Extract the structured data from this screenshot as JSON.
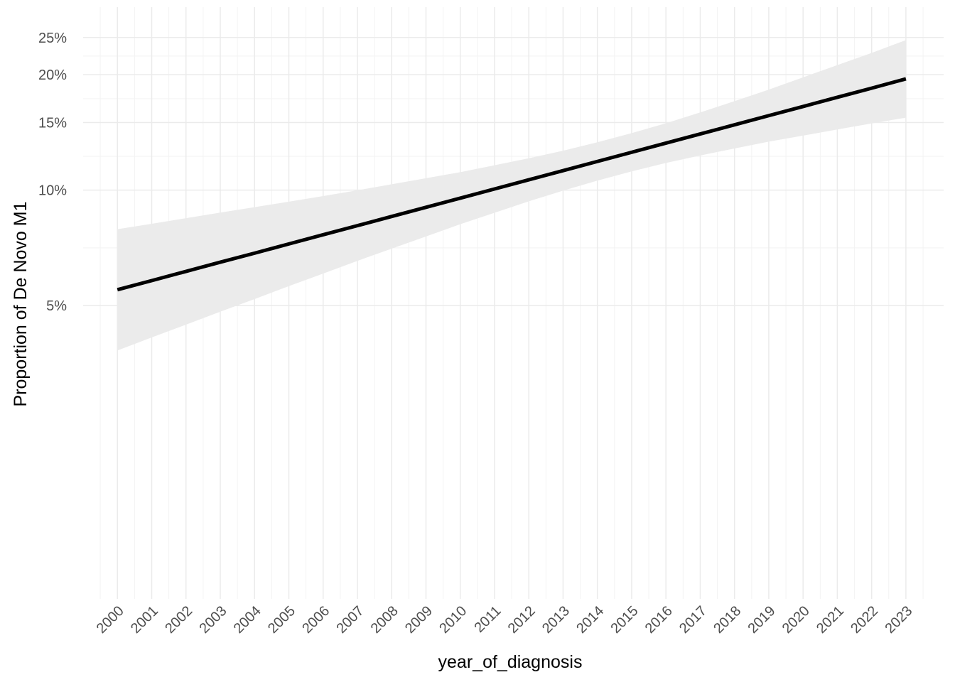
{
  "chart_data": {
    "type": "line",
    "log_y": true,
    "grid": true,
    "xlabel": "year_of_diagnosis",
    "ylabel": "Proportion of De Novo M1",
    "x": [
      2000,
      2001,
      2002,
      2003,
      2004,
      2005,
      2006,
      2007,
      2008,
      2009,
      2010,
      2011,
      2012,
      2013,
      2014,
      2015,
      2016,
      2017,
      2018,
      2019,
      2020,
      2021,
      2022,
      2023
    ],
    "values": [
      5.5,
      5.81,
      6.14,
      6.49,
      6.85,
      7.24,
      7.65,
      8.08,
      8.54,
      9.02,
      9.53,
      10.07,
      10.64,
      11.24,
      11.88,
      12.55,
      13.26,
      14.01,
      14.8,
      15.64,
      16.52,
      17.46,
      18.44,
      19.5
    ],
    "upper": [
      7.91,
      8.17,
      8.45,
      8.74,
      9.03,
      9.33,
      9.65,
      9.99,
      10.36,
      10.74,
      11.14,
      11.61,
      12.11,
      12.67,
      13.33,
      14.08,
      14.94,
      15.94,
      17.06,
      18.28,
      19.68,
      21.18,
      22.79,
      24.61
    ],
    "lower": [
      3.82,
      4.13,
      4.46,
      4.82,
      5.2,
      5.62,
      6.06,
      6.54,
      7.04,
      7.57,
      8.15,
      8.73,
      9.35,
      9.97,
      10.59,
      11.19,
      11.77,
      12.31,
      12.84,
      13.38,
      13.87,
      14.39,
      14.92,
      15.45
    ],
    "color": "#000000",
    "band_color": "#ebebeb",
    "xlim": [
      1999,
      2024.1
    ],
    "ylim": [
      0.86,
      30
    ],
    "xticks": [
      2000,
      2001,
      2002,
      2003,
      2004,
      2005,
      2006,
      2007,
      2008,
      2009,
      2010,
      2011,
      2012,
      2013,
      2014,
      2015,
      2016,
      2017,
      2018,
      2019,
      2020,
      2021,
      2022,
      2023
    ],
    "yticks": [
      {
        "value": 5,
        "label": "5%"
      },
      {
        "value": 10,
        "label": "10%"
      },
      {
        "value": 15,
        "label": "15%"
      },
      {
        "value": 20,
        "label": "20%"
      },
      {
        "value": 25,
        "label": "25%"
      }
    ]
  }
}
